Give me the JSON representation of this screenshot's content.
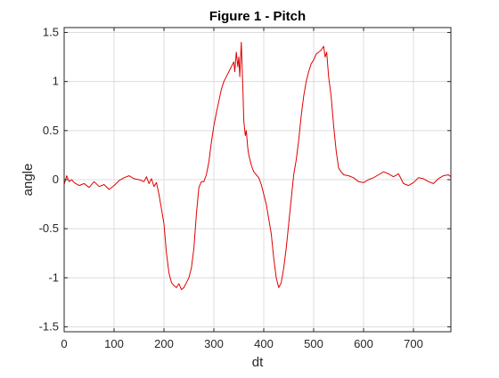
{
  "chart_data": {
    "type": "line",
    "title": "Figure 1 - Pitch",
    "xlabel": "dt",
    "ylabel": "angle",
    "xlim": [
      0,
      775
    ],
    "ylim": [
      -1.55,
      1.55
    ],
    "grid": true,
    "legend": "none",
    "x_ticks": [
      0,
      100,
      200,
      300,
      400,
      500,
      600,
      700
    ],
    "x_tick_labels": [
      "0",
      "100",
      "200",
      "300",
      "400",
      "500",
      "600",
      "700"
    ],
    "y_ticks": [
      1.5,
      1,
      0.5,
      0,
      -0.5,
      -1,
      -1.5
    ],
    "y_tick_labels": [
      "1.5",
      "1",
      "0.5",
      "0",
      "-0.5",
      "-1",
      "-1.5"
    ],
    "series": [
      {
        "color": "#e00000",
        "x": [
          0,
          5,
          10,
          15,
          20,
          30,
          40,
          50,
          60,
          70,
          80,
          90,
          100,
          110,
          120,
          130,
          140,
          150,
          160,
          165,
          170,
          175,
          180,
          185,
          190,
          195,
          200,
          205,
          210,
          215,
          220,
          225,
          230,
          235,
          240,
          245,
          250,
          255,
          260,
          265,
          270,
          275,
          280,
          285,
          290,
          295,
          300,
          305,
          310,
          315,
          320,
          325,
          330,
          335,
          340,
          342,
          345,
          348,
          350,
          352,
          355,
          358,
          360,
          363,
          365,
          368,
          370,
          375,
          380,
          385,
          390,
          395,
          400,
          405,
          410,
          415,
          420,
          425,
          430,
          435,
          440,
          445,
          450,
          455,
          460,
          465,
          470,
          475,
          480,
          485,
          490,
          495,
          500,
          505,
          510,
          515,
          520,
          523,
          526,
          530,
          535,
          540,
          545,
          550,
          555,
          560,
          570,
          580,
          590,
          600,
          610,
          620,
          630,
          640,
          650,
          660,
          670,
          680,
          690,
          700,
          710,
          720,
          730,
          740,
          750,
          760,
          770,
          775
        ],
        "values": [
          -0.05,
          0.04,
          -0.02,
          0.0,
          -0.03,
          -0.06,
          -0.04,
          -0.08,
          -0.02,
          -0.07,
          -0.05,
          -0.1,
          -0.06,
          -0.01,
          0.02,
          0.04,
          0.01,
          0.0,
          -0.02,
          0.03,
          -0.04,
          0.01,
          -0.07,
          -0.03,
          -0.15,
          -0.3,
          -0.45,
          -0.75,
          -0.95,
          -1.05,
          -1.08,
          -1.1,
          -1.06,
          -1.12,
          -1.1,
          -1.05,
          -1.0,
          -0.9,
          -0.7,
          -0.35,
          -0.08,
          -0.02,
          -0.02,
          0.05,
          0.18,
          0.38,
          0.55,
          0.68,
          0.8,
          0.92,
          1.0,
          1.05,
          1.1,
          1.15,
          1.2,
          1.1,
          1.3,
          1.15,
          1.25,
          1.05,
          1.4,
          0.95,
          0.6,
          0.45,
          0.5,
          0.32,
          0.25,
          0.15,
          0.08,
          0.05,
          0.02,
          -0.05,
          -0.15,
          -0.25,
          -0.4,
          -0.55,
          -0.8,
          -1.0,
          -1.1,
          -1.05,
          -0.9,
          -0.7,
          -0.45,
          -0.2,
          0.05,
          0.2,
          0.4,
          0.65,
          0.85,
          1.0,
          1.1,
          1.18,
          1.22,
          1.28,
          1.3,
          1.32,
          1.36,
          1.25,
          1.3,
          1.05,
          0.85,
          0.55,
          0.3,
          0.12,
          0.08,
          0.05,
          0.04,
          0.02,
          -0.02,
          -0.03,
          0.0,
          0.02,
          0.05,
          0.08,
          0.06,
          0.03,
          0.06,
          -0.04,
          -0.06,
          -0.03,
          0.02,
          0.01,
          -0.02,
          -0.04,
          0.01,
          0.04,
          0.05,
          0.03
        ]
      }
    ]
  }
}
